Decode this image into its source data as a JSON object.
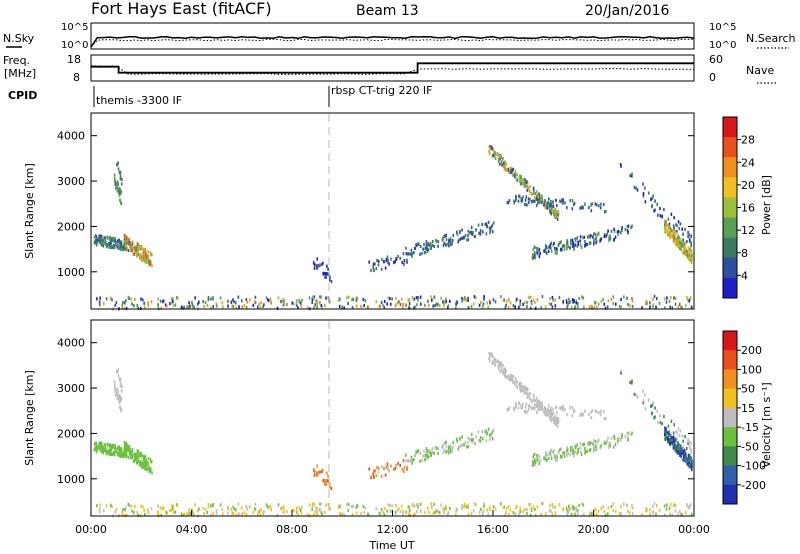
{
  "header": {
    "title": "Fort Hays East (fitACF)",
    "beam": "Beam 13",
    "date": "20/Jan/2016"
  },
  "nsky_panel": {
    "left_label": "N.Sky",
    "right_label": "N.Search",
    "left_ticks": [
      "10^5",
      "10^0"
    ],
    "right_ticks": [
      "10^5",
      "10^0"
    ]
  },
  "freq_panel": {
    "left_label_line1": "Freq.",
    "left_label_line2": "[MHz]",
    "right_label": "Nave",
    "left_ticks": [
      "18",
      "8"
    ],
    "right_ticks": [
      "60",
      "0"
    ],
    "freq_steps": [
      {
        "start_h": 0.0,
        "end_h": 1.1,
        "value": 13.5
      },
      {
        "start_h": 1.1,
        "end_h": 13.0,
        "value": 11.2
      },
      {
        "start_h": 13.0,
        "end_h": 24.0,
        "value": 14.8
      }
    ]
  },
  "cpid": {
    "label": "CPID",
    "segments": [
      {
        "start_h": 0.0,
        "label": "themis -3300 IF"
      },
      {
        "start_h": 9.5,
        "label": "rbsp CT-trig 220 IF"
      }
    ]
  },
  "chart_data": [
    {
      "type": "heatmap",
      "quantity": "Power",
      "ylabel": "Slant Range [km]",
      "ylim": [
        180,
        4500
      ],
      "yticks": [
        1000,
        2000,
        3000,
        4000
      ],
      "colorbar_label": "Power [dB]",
      "colorbar_ticks": [
        4,
        8,
        12,
        16,
        20,
        24,
        28
      ],
      "colorbar_colors": [
        "#1e1ec8",
        "#2e4fa0",
        "#3c7a64",
        "#5aa050",
        "#9bc040",
        "#f0c020",
        "#f09020",
        "#e85020",
        "#d81818"
      ]
    },
    {
      "type": "heatmap",
      "quantity": "Velocity",
      "ylabel": "Slant Range [km]",
      "xlabel": "Time UT",
      "ylim": [
        180,
        4500
      ],
      "yticks": [
        1000,
        2000,
        3000,
        4000
      ],
      "xticks": [
        "00:00",
        "04:00",
        "08:00",
        "12:00",
        "16:00",
        "20:00",
        "00:00"
      ],
      "colorbar_label": "Velocity [m s⁻¹]",
      "colorbar_ticks": [
        "200",
        "100",
        "50",
        "15",
        "-15",
        "-50",
        "-100",
        "-200"
      ],
      "colorbar_colors": [
        "#2030b0",
        "#2f5fa8",
        "#3f8a4a",
        "#6cc040",
        "#bebebe",
        "#f0c020",
        "#f09020",
        "#e85020",
        "#d81818"
      ]
    }
  ],
  "colors": {
    "dash_line": "#bbbbbb"
  }
}
